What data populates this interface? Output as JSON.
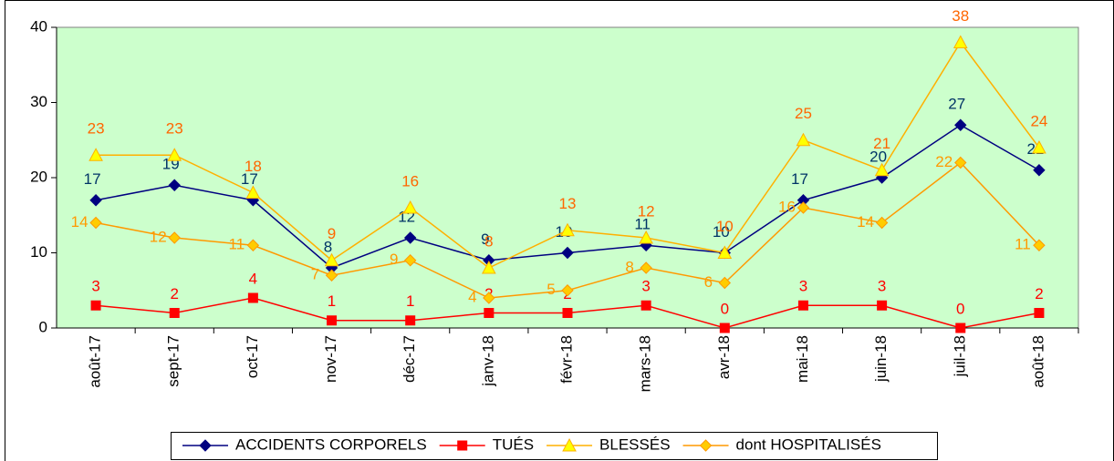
{
  "chart_data": {
    "type": "line",
    "categories": [
      "août-17",
      "sept-17",
      "oct-17",
      "nov-17",
      "déc-17",
      "janv-18",
      "févr-18",
      "mars-18",
      "avr-18",
      "mai-18",
      "juin-18",
      "juil-18",
      "août-18"
    ],
    "series": [
      {
        "name": "ACCIDENTS CORPORELS",
        "color": "#000080",
        "label_color": "#003366",
        "marker": "diamond",
        "marker_fill": "#000080",
        "values": [
          17,
          19,
          17,
          8,
          12,
          9,
          10,
          11,
          10,
          17,
          20,
          27,
          21
        ]
      },
      {
        "name": "TUÉS",
        "color": "#ff0000",
        "label_color": "#ff0000",
        "marker": "square",
        "marker_fill": "#ff0000",
        "values": [
          3,
          2,
          4,
          1,
          1,
          2,
          2,
          3,
          0,
          3,
          3,
          0,
          2
        ]
      },
      {
        "name": "BLESSÉS",
        "color": "#ffb000",
        "label_color": "#ff6600",
        "marker": "triangle",
        "marker_fill": "#ffff00",
        "values": [
          23,
          23,
          18,
          9,
          16,
          8,
          13,
          12,
          10,
          25,
          21,
          38,
          24
        ]
      },
      {
        "name": "dont HOSPITALISÉS",
        "color": "#ff9900",
        "label_color": "#ff9900",
        "marker": "diamond",
        "marker_fill": "#ffcc00",
        "values": [
          14,
          12,
          11,
          7,
          9,
          4,
          5,
          8,
          6,
          16,
          14,
          22,
          11
        ]
      }
    ],
    "ylim": [
      0,
      40
    ],
    "yticks": [
      0,
      10,
      20,
      30,
      40
    ],
    "grid": false,
    "plot_background": "#ccffcc",
    "legend": "bottom"
  }
}
